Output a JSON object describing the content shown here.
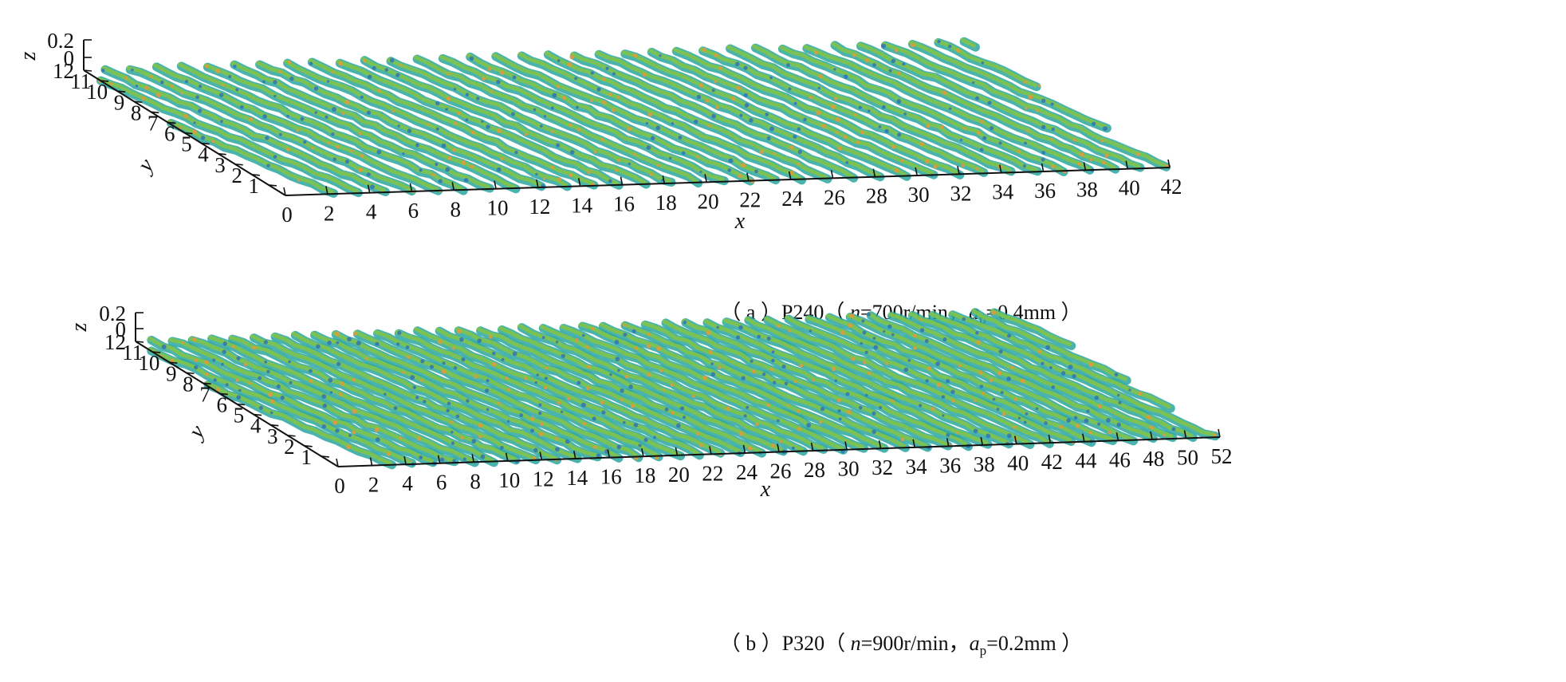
{
  "chart_data": [
    {
      "type": "surface",
      "panel": "a",
      "caption": {
        "prefix": "（ a ）P240（ ",
        "n_var": "n",
        "n_value": "=700r/min，",
        "ap_var": "a",
        "ap_sub": "p",
        "ap_value": "=0.4mm ）"
      },
      "xlabel": "x",
      "ylabel": "y",
      "zlabel": "z",
      "xlim": [
        0,
        42
      ],
      "ylim": [
        0,
        12
      ],
      "zlim": [
        0,
        0.2
      ],
      "x_ticks": [
        0,
        2,
        4,
        6,
        8,
        10,
        12,
        14,
        16,
        18,
        20,
        22,
        24,
        26,
        28,
        30,
        32,
        34,
        36,
        38,
        40,
        42
      ],
      "y_ticks": [
        1,
        2,
        3,
        4,
        5,
        6,
        7,
        8,
        9,
        10,
        11,
        12
      ],
      "z_ticks": [
        0,
        0.2
      ],
      "ridge_count": 38,
      "colors": {
        "primary": "#2aa6a0",
        "secondary": "#7fc34a",
        "accent": "#e39a3b",
        "deep": "#2f74b8"
      }
    },
    {
      "type": "surface",
      "panel": "b",
      "caption": {
        "prefix": "（ b ）P320（ ",
        "n_var": "n",
        "n_value": "=900r/min，",
        "ap_var": "a",
        "ap_sub": "p",
        "ap_value": "=0.2mm ）"
      },
      "xlabel": "x",
      "ylabel": "y",
      "zlabel": "z",
      "xlim": [
        0,
        52
      ],
      "ylim": [
        0,
        12
      ],
      "zlim": [
        0,
        0.2
      ],
      "x_ticks": [
        0,
        2,
        4,
        6,
        8,
        10,
        12,
        14,
        16,
        18,
        20,
        22,
        24,
        26,
        28,
        30,
        32,
        34,
        36,
        38,
        40,
        42,
        44,
        46,
        48,
        50,
        52
      ],
      "y_ticks": [
        1,
        2,
        3,
        4,
        5,
        6,
        7,
        8,
        9,
        10,
        11,
        12
      ],
      "z_ticks": [
        0,
        0.2
      ],
      "ridge_count": 48,
      "colors": {
        "primary": "#2aa6a0",
        "secondary": "#7fc34a",
        "accent": "#e39a3b",
        "deep": "#2f74b8"
      }
    }
  ]
}
